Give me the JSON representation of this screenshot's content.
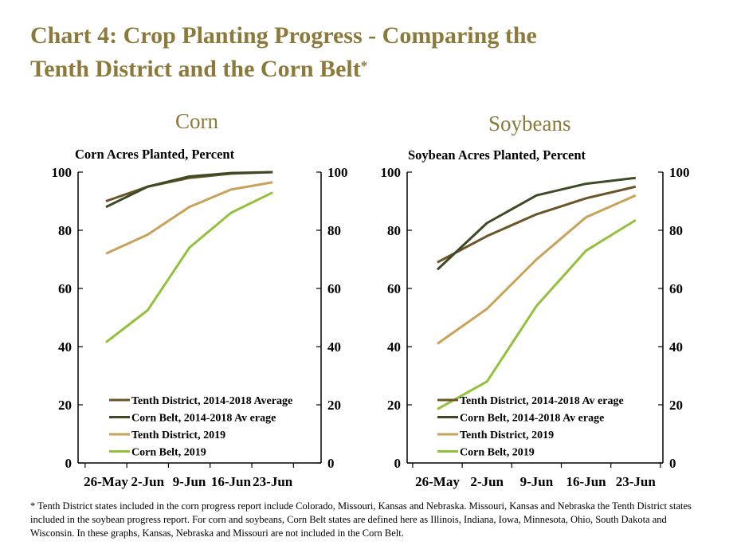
{
  "title_line1": "Chart 4: Crop Planting Progress - Comparing the",
  "title_line2": "Tenth District and the Corn Belt",
  "title_mark": "*",
  "colors": {
    "title": "#8b7a3a",
    "tenth_avg": "#6b5428",
    "corn_avg": "#3d4a25",
    "tenth_2019": "#c9a25a",
    "corn_2019": "#93c13b"
  },
  "chart_data": [
    {
      "type": "line",
      "heading": "Corn",
      "ylabel": "Corn Acres Planted, Percent",
      "categories": [
        "26-May",
        "2-Jun",
        "9-Jun",
        "16-Jun",
        "23-Jun"
      ],
      "ylim": [
        0,
        100
      ],
      "yticks": [
        "0",
        "20",
        "40",
        "60",
        "80",
        "100"
      ],
      "grid": false,
      "legend_position": "bottom-right",
      "series": [
        {
          "name": "Tenth District, 2014-2018 Average",
          "color": "#6b5428",
          "values": [
            90,
            95,
            98,
            99.5,
            100
          ]
        },
        {
          "name": "Corn Belt, 2014-2018 Av erage",
          "color": "#3d4a25",
          "values": [
            88,
            95,
            98.5,
            99.7,
            100
          ]
        },
        {
          "name": "Tenth District, 2019",
          "color": "#c9a25a",
          "values": [
            72,
            78.5,
            88,
            94,
            96.5
          ]
        },
        {
          "name": "Corn Belt, 2019",
          "color": "#93c13b",
          "values": [
            41.5,
            52.5,
            74,
            86,
            93
          ]
        }
      ]
    },
    {
      "type": "line",
      "heading": "Soybeans",
      "ylabel": "Soybean Acres Planted, Percent",
      "categories": [
        "26-May",
        "2-Jun",
        "9-Jun",
        "16-Jun",
        "23-Jun"
      ],
      "ylim": [
        0,
        100
      ],
      "yticks": [
        "0",
        "20",
        "40",
        "60",
        "80",
        "100"
      ],
      "grid": false,
      "legend_position": "bottom-right",
      "series": [
        {
          "name": "Tenth District, 2014-2018 Av erage",
          "color": "#6b5428",
          "values": [
            69,
            78,
            85.5,
            91,
            95
          ]
        },
        {
          "name": "Corn Belt, 2014-2018 Av erage",
          "color": "#3d4a25",
          "values": [
            66.5,
            82.5,
            92,
            96,
            98
          ]
        },
        {
          "name": "Tenth District, 2019",
          "color": "#c9a25a",
          "values": [
            41,
            53,
            70,
            84.5,
            92
          ]
        },
        {
          "name": "Corn Belt, 2019",
          "color": "#93c13b",
          "values": [
            18.5,
            28,
            54,
            73,
            83.5
          ]
        }
      ]
    }
  ],
  "footnote": "* Tenth District states included in the corn progress report include Colorado, Missouri, Kansas and Nebraska. Missouri, Kansas and Nebraska the Tenth District states included in the soybean progress report. For corn and soybeans, Corn Belt states are defined here as Illinois, Indiana, Iowa, Minnesota, Ohio, South Dakota and Wisconsin. In these graphs, Kansas, Nebraska and Missouri are not included in the Corn Belt."
}
